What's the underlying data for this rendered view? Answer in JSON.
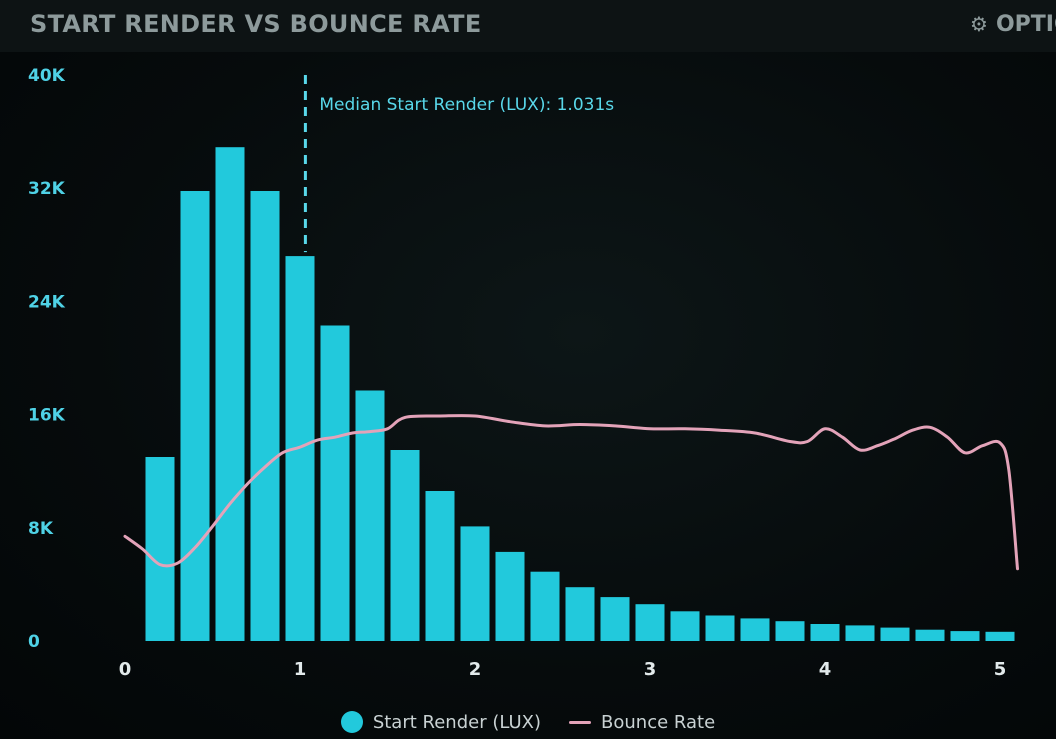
{
  "header": {
    "title": "START RENDER VS BOUNCE RATE",
    "options_label": "OPTIONS"
  },
  "colors": {
    "bar": "#22c9dc",
    "bounce_line": "#e3a3b9",
    "tick_text": "#4fd2e6",
    "median_line": "#59d8ea"
  },
  "chart_data": {
    "type": "bar",
    "title": "START RENDER VS BOUNCE RATE",
    "xlabel": "",
    "ylabel": "",
    "xlim": [
      0,
      5.1
    ],
    "ylim": [
      0,
      40000
    ],
    "x_ticks": [
      "0",
      "1",
      "2",
      "3",
      "4",
      "5"
    ],
    "y_ticks": [
      "0",
      "8K",
      "16K",
      "24K",
      "32K",
      "40K"
    ],
    "grid": false,
    "legend_position": "bottom-center",
    "bar_width": 0.2,
    "series": [
      {
        "name": "Start Render (LUX)",
        "type": "bar",
        "x": [
          0.2,
          0.4,
          0.6,
          0.8,
          1.0,
          1.2,
          1.4,
          1.6,
          1.8,
          2.0,
          2.2,
          2.4,
          2.6,
          2.8,
          3.0,
          3.2,
          3.4,
          3.6,
          3.8,
          4.0,
          4.2,
          4.4,
          4.6,
          4.8,
          5.0
        ],
        "values": [
          13000,
          31800,
          34900,
          31800,
          27200,
          22300,
          17700,
          13500,
          10600,
          8100,
          6300,
          4900,
          3800,
          3100,
          2600,
          2100,
          1800,
          1600,
          1400,
          1200,
          1100,
          950,
          800,
          700,
          650
        ]
      },
      {
        "name": "Bounce Rate",
        "type": "line",
        "x": [
          0.0,
          0.1,
          0.2,
          0.3,
          0.4,
          0.5,
          0.6,
          0.7,
          0.8,
          0.9,
          1.0,
          1.1,
          1.2,
          1.3,
          1.4,
          1.5,
          1.6,
          1.8,
          2.0,
          2.2,
          2.4,
          2.6,
          2.8,
          3.0,
          3.2,
          3.4,
          3.6,
          3.8,
          3.9,
          4.0,
          4.1,
          4.2,
          4.3,
          4.4,
          4.5,
          4.6,
          4.7,
          4.8,
          4.9,
          5.0,
          5.05,
          5.1
        ],
        "values": [
          7400,
          6500,
          5400,
          5500,
          6600,
          8100,
          9700,
          11100,
          12300,
          13300,
          13700,
          14200,
          14400,
          14700,
          14800,
          15000,
          15800,
          15900,
          15900,
          15500,
          15200,
          15300,
          15200,
          15000,
          15000,
          14900,
          14700,
          14100,
          14100,
          15000,
          14400,
          13500,
          13800,
          14300,
          14900,
          15100,
          14400,
          13300,
          13800,
          14000,
          12100,
          5100
        ]
      }
    ],
    "annotations": [
      {
        "type": "vline",
        "x": 1.031,
        "label": "Median Start Render (LUX): 1.031s"
      }
    ]
  }
}
